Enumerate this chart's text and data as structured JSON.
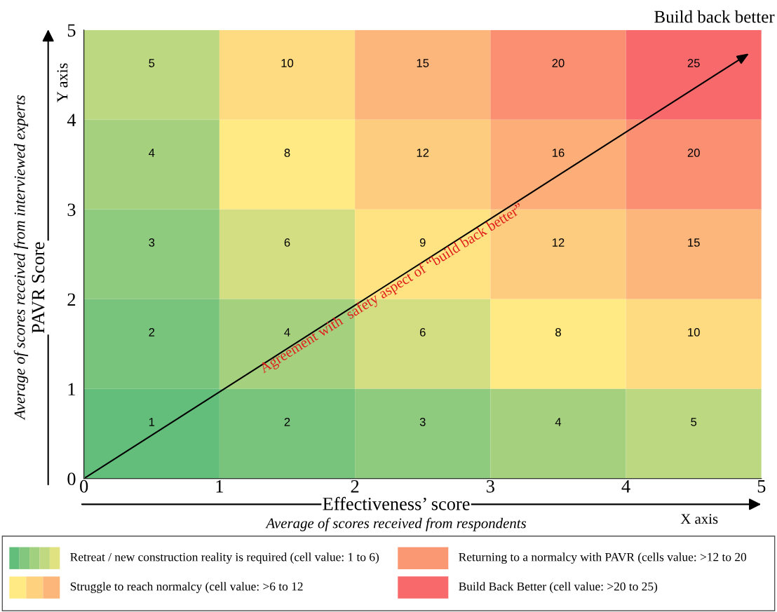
{
  "chart_data": {
    "type": "heatmap",
    "cells": [
      [
        5,
        10,
        15,
        20,
        25
      ],
      [
        4,
        8,
        12,
        16,
        20
      ],
      [
        3,
        6,
        9,
        12,
        15
      ],
      [
        2,
        4,
        6,
        8,
        10
      ],
      [
        1,
        2,
        3,
        4,
        5
      ]
    ],
    "colors": [
      "#63be7b",
      "#ffeb84",
      "#f8696b"
    ],
    "xlim": [
      0,
      5
    ],
    "xticks": [
      0,
      1,
      2,
      3,
      4,
      5
    ],
    "ylim": [
      0,
      5
    ],
    "yticks": [
      0,
      1,
      2,
      3,
      4,
      5
    ],
    "xlabel": "Effectiveness’ score",
    "ylabel": "PAVR Score",
    "data_labels": true,
    "annotations": [
      "Build back better",
      "Average of scores received from respondents",
      "X axis",
      "Average of scores received from interviewed experts",
      "Y axis",
      "Agreement with  safety aspect of “build back better”",
      "Retreat / new construction reality is required (cell value: 1 to 6)",
      "Struggle to reach normalcy (cell value: >6 to 12",
      "Returning to a normalcy with PAVR (cells value: >12 to 20",
      "Build Back Better (cell value: >20 to 25)"
    ]
  }
}
